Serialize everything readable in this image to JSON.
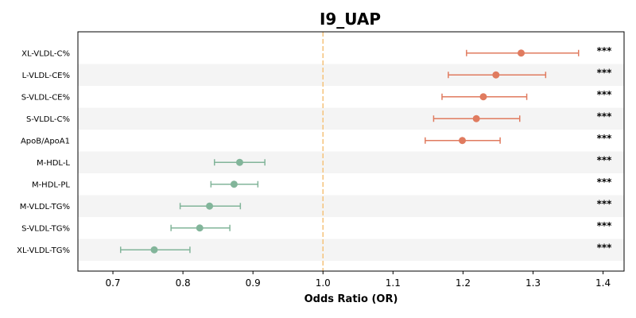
{
  "chart_data": {
    "type": "forest",
    "title": "I9_UAP",
    "xlabel": "Odds Ratio (OR)",
    "xlim": [
      0.65,
      1.43
    ],
    "xticks": [
      "0.7",
      "0.8",
      "0.9",
      "1.0",
      "1.1",
      "1.2",
      "1.3",
      "1.4"
    ],
    "reference_line": 1.0,
    "grid": false,
    "colors": {
      "positive": "#e07b5f",
      "negative": "#82b59a",
      "reference": "#f5c27a",
      "band": "#f4f4f4"
    },
    "rows": [
      {
        "label": "XL-VLDL-C%",
        "or": 1.283,
        "lo": 1.205,
        "hi": 1.365,
        "sig": "***"
      },
      {
        "label": "L-VLDL-CE%",
        "or": 1.247,
        "lo": 1.179,
        "hi": 1.318,
        "sig": "***"
      },
      {
        "label": "S-VLDL-CE%",
        "or": 1.229,
        "lo": 1.17,
        "hi": 1.291,
        "sig": "***"
      },
      {
        "label": "S-VLDL-C%",
        "or": 1.219,
        "lo": 1.158,
        "hi": 1.281,
        "sig": "***"
      },
      {
        "label": "ApoB/ApoA1",
        "or": 1.199,
        "lo": 1.146,
        "hi": 1.253,
        "sig": "***"
      },
      {
        "label": "M-HDL-L",
        "or": 0.881,
        "lo": 0.845,
        "hi": 0.917,
        "sig": "***"
      },
      {
        "label": "M-HDL-PL",
        "or": 0.873,
        "lo": 0.84,
        "hi": 0.907,
        "sig": "***"
      },
      {
        "label": "M-VLDL-TG%",
        "or": 0.838,
        "lo": 0.796,
        "hi": 0.882,
        "sig": "***"
      },
      {
        "label": "S-VLDL-TG%",
        "or": 0.824,
        "lo": 0.783,
        "hi": 0.867,
        "sig": "***"
      },
      {
        "label": "XL-VLDL-TG%",
        "or": 0.759,
        "lo": 0.711,
        "hi": 0.81,
        "sig": "***"
      }
    ]
  }
}
